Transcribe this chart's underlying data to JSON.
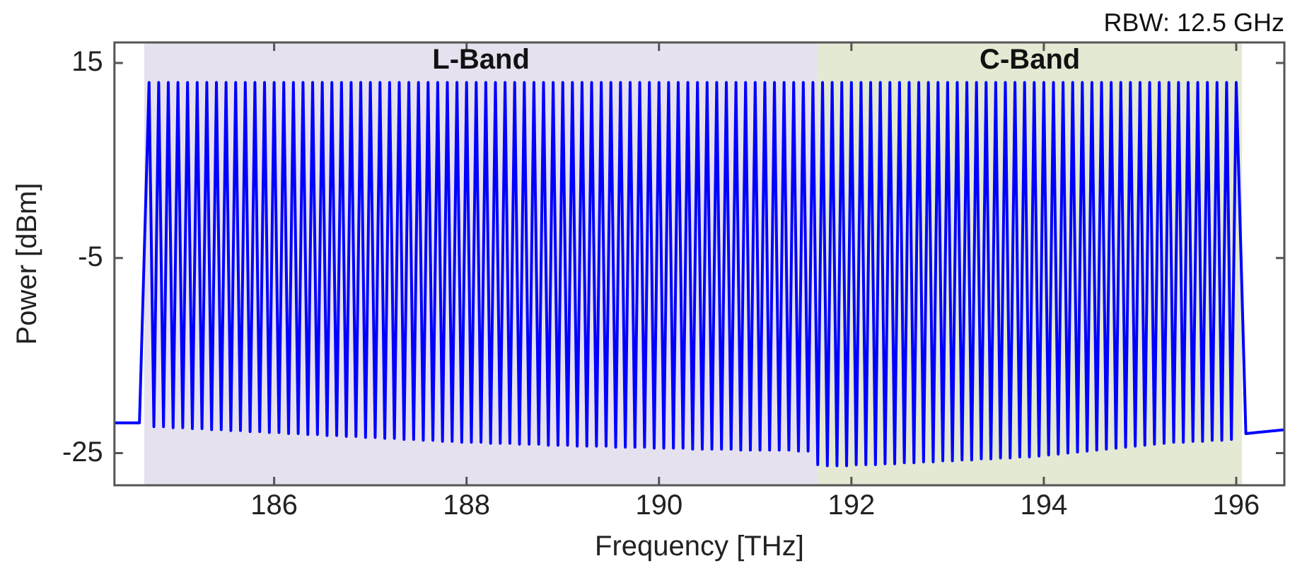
{
  "chart_data": {
    "type": "line",
    "xlabel": "Frequency [THz]",
    "ylabel": "Power [dBm]",
    "annotations": [
      "RBW: 12.5 GHz"
    ],
    "xlim": [
      184.34,
      196.5
    ],
    "xticks": [
      186,
      188,
      190,
      192,
      194,
      196
    ],
    "ylim": [
      -28.3,
      17.1
    ],
    "yticks": [
      15,
      -5,
      -25
    ],
    "grid": false,
    "legend": false,
    "marker": "none",
    "line_style": "solid",
    "bands": [
      {
        "axis": "x",
        "from": 184.65,
        "to": 191.65,
        "label": "L-Band",
        "color": "#e6e1ee"
      },
      {
        "axis": "x",
        "from": 191.65,
        "to": 196.06,
        "label": "C-Band",
        "color": "#e3e9d3"
      }
    ],
    "series": [
      {
        "color": "#0000ff",
        "x": [
          184.34,
          184.6,
          184.7,
          184.75,
          184.8,
          184.85,
          184.9,
          184.95,
          185,
          185.05,
          185.1,
          185.15,
          185.2,
          185.25,
          185.3,
          185.35,
          185.4,
          185.45,
          185.5,
          185.55,
          185.6,
          185.65,
          185.7,
          185.75,
          185.8,
          185.85,
          185.9,
          185.95,
          186,
          186.05,
          186.1,
          186.15,
          186.2,
          186.25,
          186.3,
          186.35,
          186.4,
          186.45,
          186.5,
          186.55,
          186.6,
          186.65,
          186.7,
          186.75,
          186.8,
          186.85,
          186.9,
          186.95,
          187,
          187.05,
          187.1,
          187.15,
          187.2,
          187.25,
          187.3,
          187.35,
          187.4,
          187.45,
          187.5,
          187.55,
          187.6,
          187.65,
          187.7,
          187.75,
          187.8,
          187.85,
          187.9,
          187.95,
          188,
          188.05,
          188.1,
          188.15,
          188.2,
          188.25,
          188.3,
          188.35,
          188.4,
          188.45,
          188.5,
          188.55,
          188.6,
          188.65,
          188.7,
          188.75,
          188.8,
          188.85,
          188.9,
          188.95,
          189,
          189.05,
          189.1,
          189.15,
          189.2,
          189.25,
          189.3,
          189.35,
          189.4,
          189.45,
          189.5,
          189.55,
          189.6,
          189.65,
          189.7,
          189.75,
          189.8,
          189.85,
          189.9,
          189.95,
          190,
          190.05,
          190.1,
          190.15,
          190.2,
          190.25,
          190.3,
          190.35,
          190.4,
          190.45,
          190.5,
          190.55,
          190.6,
          190.65,
          190.7,
          190.75,
          190.8,
          190.85,
          190.9,
          190.95,
          191,
          191.05,
          191.1,
          191.15,
          191.2,
          191.25,
          191.3,
          191.35,
          191.4,
          191.45,
          191.5,
          191.55,
          191.6,
          191.65,
          191.7,
          191.75,
          191.8,
          191.85,
          191.9,
          191.95,
          192,
          192.05,
          192.1,
          192.15,
          192.2,
          192.25,
          192.3,
          192.35,
          192.4,
          192.45,
          192.5,
          192.55,
          192.6,
          192.65,
          192.7,
          192.75,
          192.8,
          192.85,
          192.9,
          192.95,
          193,
          193.05,
          193.1,
          193.15,
          193.2,
          193.25,
          193.3,
          193.35,
          193.4,
          193.45,
          193.5,
          193.55,
          193.6,
          193.65,
          193.7,
          193.75,
          193.8,
          193.85,
          193.9,
          193.95,
          194,
          194.05,
          194.1,
          194.15,
          194.2,
          194.25,
          194.3,
          194.35,
          194.4,
          194.45,
          194.5,
          194.55,
          194.6,
          194.65,
          194.7,
          194.75,
          194.8,
          194.85,
          194.9,
          194.95,
          195,
          195.05,
          195.1,
          195.15,
          195.2,
          195.25,
          195.3,
          195.35,
          195.4,
          195.45,
          195.5,
          195.55,
          195.6,
          195.65,
          195.7,
          195.75,
          195.8,
          195.85,
          195.9,
          195.95,
          196,
          196.1,
          196.5
        ],
        "values": [
          -21.9,
          -21.9,
          13,
          -22.3,
          13,
          -22.3,
          13,
          -22.4,
          13,
          -22.4,
          13,
          -22.5,
          13,
          -22.5,
          13,
          -22.6,
          13,
          -22.6,
          13,
          -22.7,
          13,
          -22.7,
          13,
          -22.8,
          13,
          -22.8,
          13,
          -22.9,
          13,
          -22.9,
          13,
          -23.0,
          13,
          -23.0,
          13,
          -23.1,
          13,
          -23.1,
          13,
          -23.2,
          13,
          -23.2,
          13,
          -23.3,
          13,
          -23.3,
          13,
          -23.4,
          13,
          -23.4,
          13,
          -23.5,
          13,
          -23.5,
          13,
          -23.6,
          13,
          -23.6,
          13,
          -23.7,
          13,
          -23.7,
          13,
          -23.8,
          13,
          -23.8,
          13,
          -23.9,
          13,
          -23.9,
          13,
          -23.9,
          13,
          -24.0,
          13,
          -24.0,
          13,
          -24.0,
          13,
          -24.1,
          13,
          -24.1,
          13,
          -24.1,
          13,
          -24.2,
          13,
          -24.2,
          13,
          -24.2,
          13,
          -24.3,
          13,
          -24.3,
          13,
          -24.3,
          13,
          -24.3,
          13,
          -24.4,
          13,
          -24.4,
          13,
          -24.4,
          13,
          -24.4,
          13,
          -24.5,
          13,
          -24.5,
          13,
          -24.5,
          13,
          -24.5,
          13,
          -24.6,
          13,
          -24.6,
          13,
          -24.6,
          13,
          -24.6,
          13,
          -24.6,
          13,
          -24.7,
          13,
          -24.7,
          13,
          -24.7,
          13,
          -24.7,
          13,
          -24.7,
          13,
          -24.7,
          13,
          -24.8,
          13,
          -24.8,
          13,
          -26.2,
          13,
          -26.3,
          13,
          -26.3,
          13,
          -26.3,
          13,
          -26.2,
          13,
          -26.2,
          13,
          -26.2,
          13,
          -26.1,
          13,
          -26.1,
          13,
          -26.0,
          13,
          -26.0,
          13,
          -25.9,
          13,
          -25.9,
          13,
          -25.8,
          13,
          -25.8,
          13,
          -25.7,
          13,
          -25.7,
          13,
          -25.6,
          13,
          -25.6,
          13,
          -25.5,
          13,
          -25.5,
          13,
          -25.4,
          13,
          -25.4,
          13,
          -25.3,
          13,
          -25.2,
          13,
          -25.1,
          13,
          -25.0,
          13,
          -24.9,
          13,
          -24.8,
          13,
          -24.7,
          13,
          -24.6,
          13,
          -24.5,
          13,
          -24.4,
          13,
          -24.3,
          13,
          -24.2,
          13,
          -24.1,
          13,
          -24.0,
          13,
          -23.9,
          13,
          -23.9,
          13,
          -23.8,
          13,
          -23.8,
          13,
          -23.7,
          13,
          -23.7,
          13,
          -23.6,
          13,
          -23.0,
          -22.6
        ]
      }
    ]
  }
}
